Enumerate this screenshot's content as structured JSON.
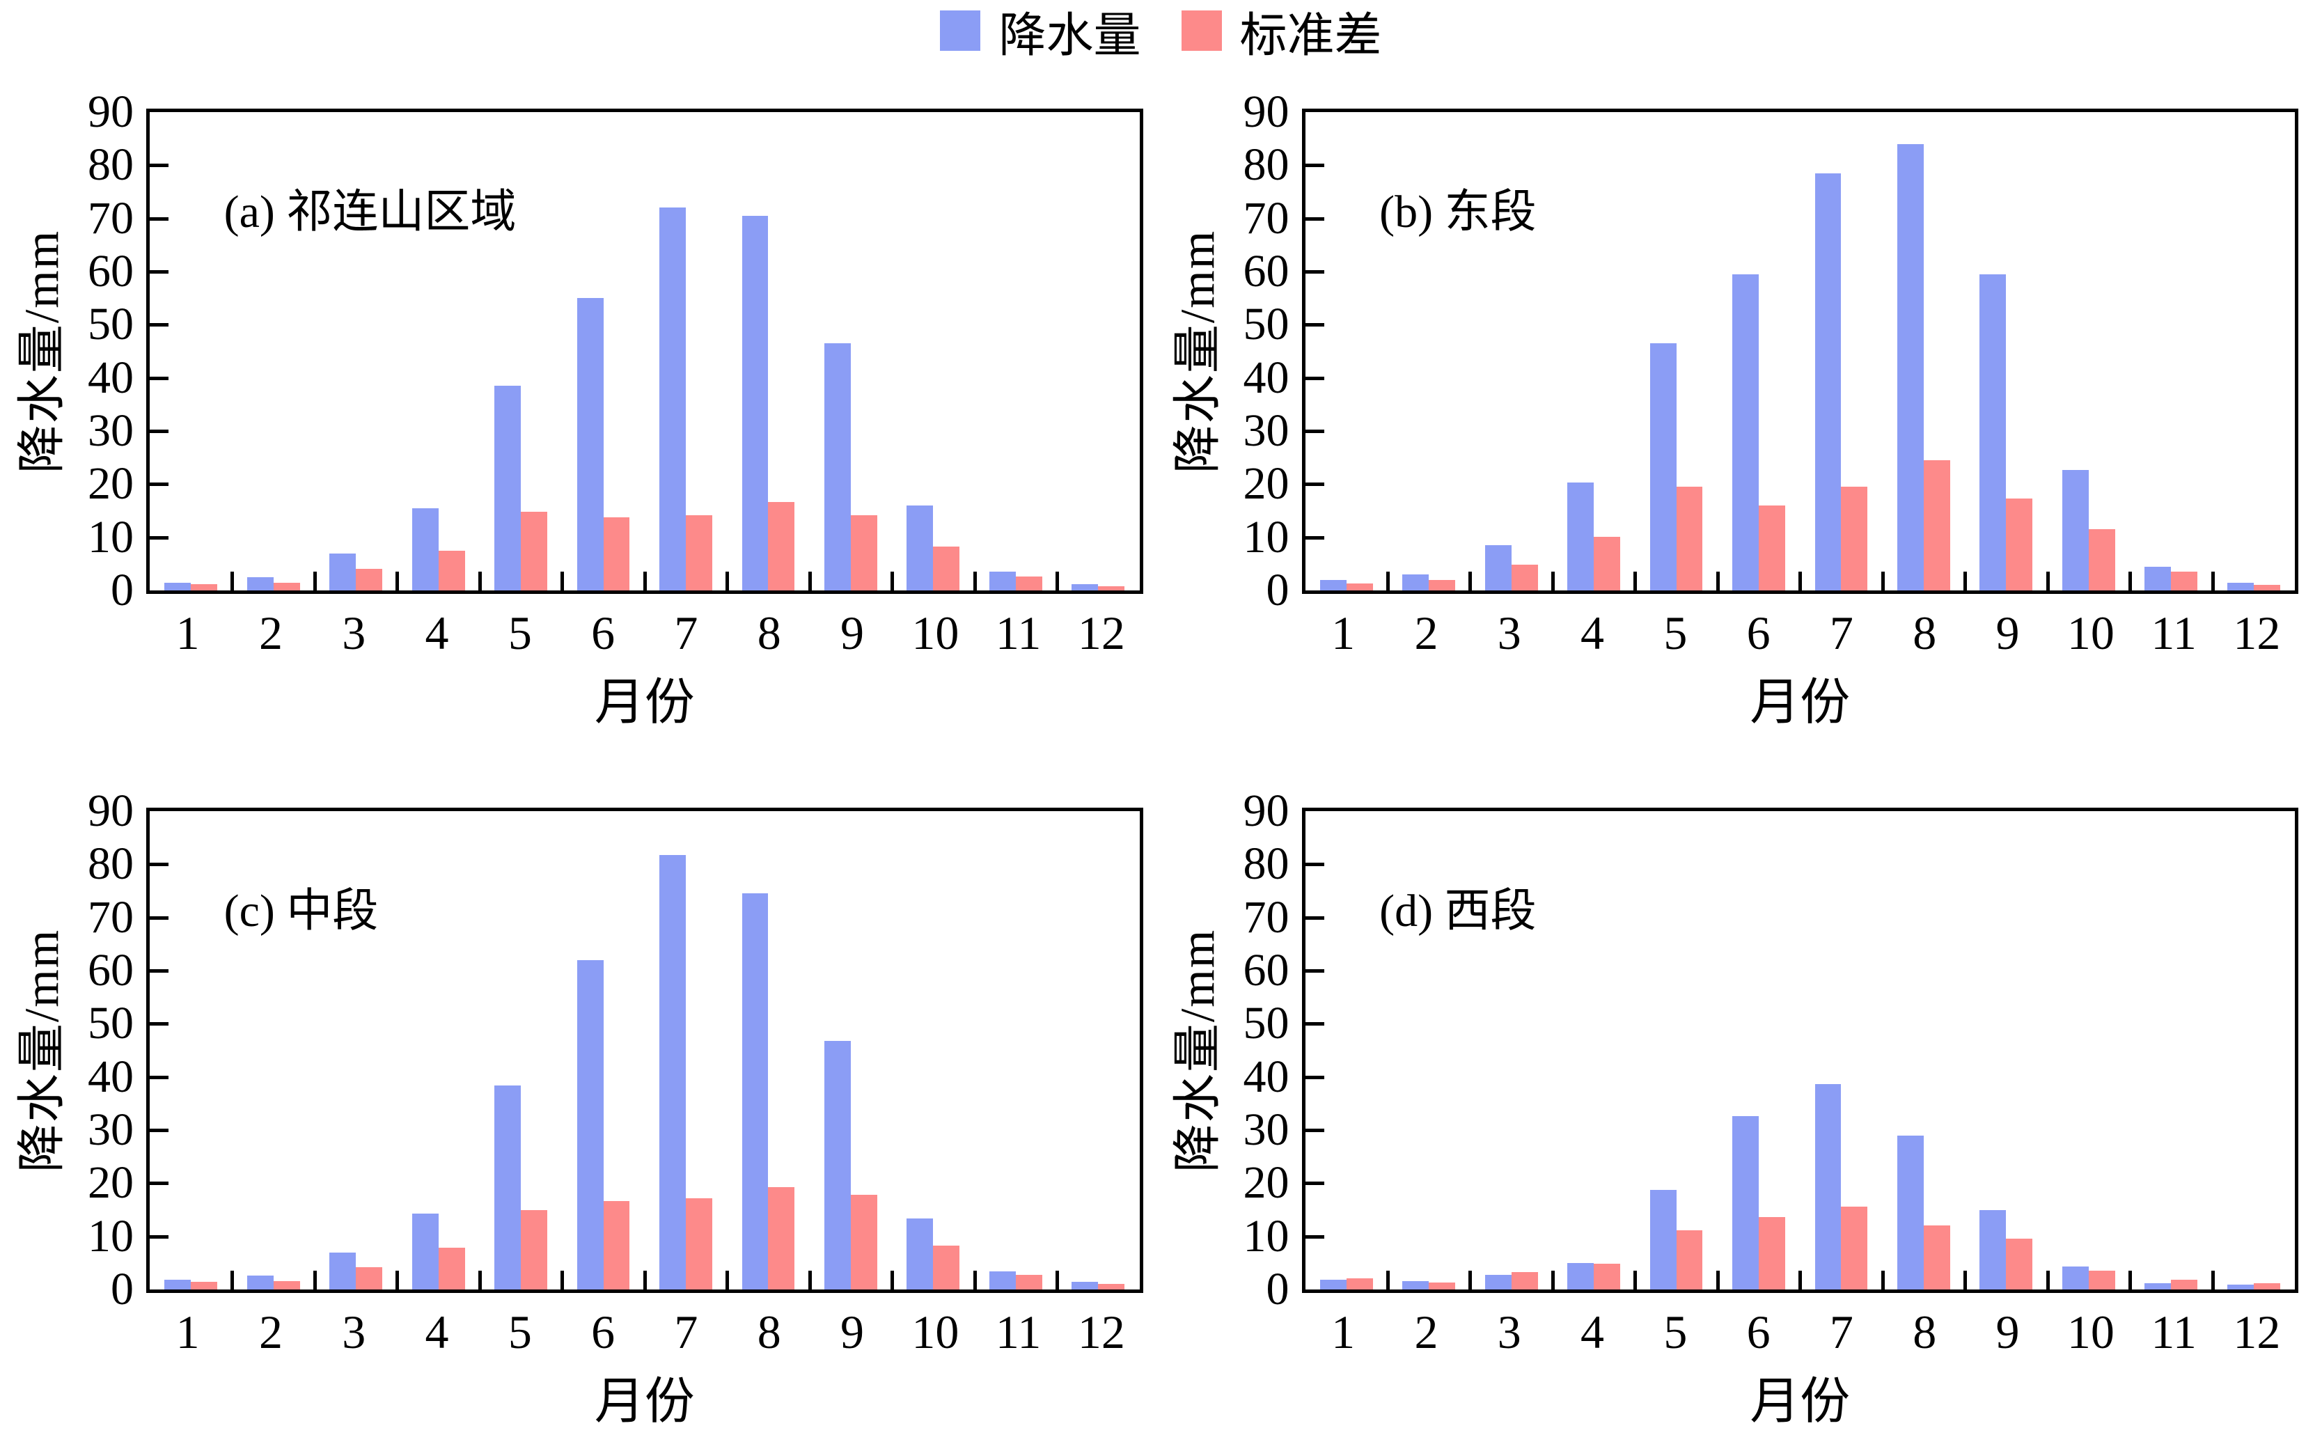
{
  "figure": {
    "legend": [
      {
        "label": "降水量",
        "color": "#8B9DF5"
      },
      {
        "label": "标准差",
        "color": "#FD8A8A"
      }
    ],
    "ylabel": "降水量/mm",
    "xlabel": "月份",
    "y_ticks": [
      "90",
      "80",
      "70",
      "60",
      "50",
      "40",
      "30",
      "20",
      "10",
      "0"
    ],
    "x_ticks": [
      "1",
      "2",
      "3",
      "4",
      "5",
      "6",
      "7",
      "8",
      "9",
      "10",
      "11",
      "12"
    ]
  },
  "chart_data": [
    {
      "type": "bar",
      "title": "(a) 祁连山区域",
      "categories": [
        "1",
        "2",
        "3",
        "4",
        "5",
        "6",
        "7",
        "8",
        "9",
        "10",
        "11",
        "12"
      ],
      "series": [
        {
          "name": "降水量",
          "color": "#8B9DF5",
          "values": [
            1.5,
            2.5,
            7,
            15.5,
            38.5,
            55,
            72,
            70.5,
            46.5,
            16,
            3.5,
            1.2
          ]
        },
        {
          "name": "标准差",
          "color": "#FD8A8A",
          "values": [
            1.2,
            1.5,
            4,
            7.5,
            14.8,
            13.8,
            14.2,
            16.6,
            14.2,
            8.2,
            2.6,
            0.8
          ]
        }
      ],
      "xlabel": "月份",
      "ylabel": "降水量/mm",
      "ylim": [
        0,
        90
      ],
      "grid": false
    },
    {
      "type": "bar",
      "title": "(b) 东段",
      "categories": [
        "1",
        "2",
        "3",
        "4",
        "5",
        "6",
        "7",
        "8",
        "9",
        "10",
        "11",
        "12"
      ],
      "series": [
        {
          "name": "降水量",
          "color": "#8B9DF5",
          "values": [
            2,
            3,
            8.5,
            20.3,
            46.5,
            59.5,
            78.5,
            84,
            59.5,
            22.7,
            4.5,
            1.5
          ]
        },
        {
          "name": "标准差",
          "color": "#FD8A8A",
          "values": [
            1.3,
            2,
            4.8,
            10.1,
            19.5,
            16,
            19.5,
            24.5,
            17.3,
            11.5,
            3.6,
            1
          ]
        }
      ],
      "xlabel": "月份",
      "ylabel": "降水量/mm",
      "ylim": [
        0,
        90
      ],
      "grid": false
    },
    {
      "type": "bar",
      "title": "(c) 中段",
      "categories": [
        "1",
        "2",
        "3",
        "4",
        "5",
        "6",
        "7",
        "8",
        "9",
        "10",
        "11",
        "12"
      ],
      "series": [
        {
          "name": "降水量",
          "color": "#8B9DF5",
          "values": [
            1.8,
            2.6,
            6.9,
            14.3,
            38.4,
            62,
            81.8,
            74.5,
            46.8,
            13.3,
            3.4,
            1.4
          ]
        },
        {
          "name": "标准差",
          "color": "#FD8A8A",
          "values": [
            1.4,
            1.6,
            4.2,
            7.8,
            14.9,
            16.6,
            17.2,
            19.3,
            17.8,
            8.2,
            2.8,
            1.1
          ]
        }
      ],
      "xlabel": "月份",
      "ylabel": "降水量/mm",
      "ylim": [
        0,
        90
      ],
      "grid": false
    },
    {
      "type": "bar",
      "title": "(d) 西段",
      "categories": [
        "1",
        "2",
        "3",
        "4",
        "5",
        "6",
        "7",
        "8",
        "9",
        "10",
        "11",
        "12"
      ],
      "series": [
        {
          "name": "降水量",
          "color": "#8B9DF5",
          "values": [
            1.8,
            1.6,
            2.7,
            5,
            18.7,
            32.6,
            38.7,
            28.9,
            14.9,
            4.3,
            1.2,
            0.9
          ]
        },
        {
          "name": "标准差",
          "color": "#FD8A8A",
          "values": [
            2.1,
            1.3,
            3.3,
            4.9,
            11.2,
            13.6,
            15.6,
            12,
            9.6,
            3.6,
            1.8,
            1.2
          ]
        }
      ],
      "xlabel": "月份",
      "ylabel": "降水量/mm",
      "ylim": [
        0,
        90
      ],
      "grid": false
    }
  ]
}
